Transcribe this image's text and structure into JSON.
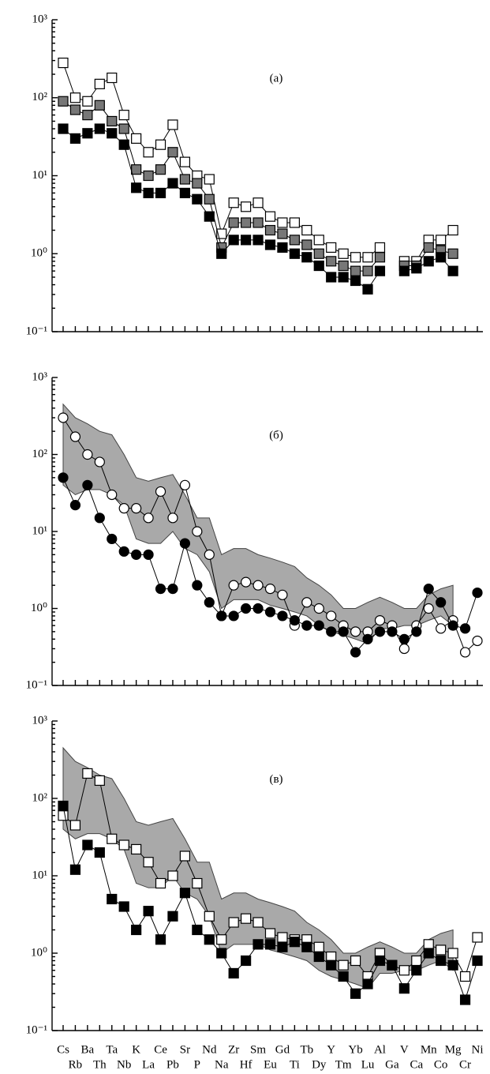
{
  "chart_data": [
    {
      "type": "line",
      "label": "(a)",
      "log": true,
      "ylim": [
        0.1,
        1000
      ],
      "yticks": [
        {
          "value": 0.1,
          "label": "10⁻¹"
        },
        {
          "value": 1,
          "label": "10⁰"
        },
        {
          "value": 10,
          "label": "10¹"
        },
        {
          "value": 100,
          "label": "10²"
        },
        {
          "value": 1000,
          "label": "10³"
        }
      ],
      "series": [
        {
          "marker": "square-open",
          "color": "#000000",
          "values": [
            280,
            100,
            90,
            150,
            180,
            60,
            30,
            20,
            25,
            45,
            15,
            10,
            9,
            1.8,
            4.5,
            4,
            4.5,
            3,
            2.5,
            2.5,
            2,
            1.5,
            1.2,
            1,
            0.9,
            0.9,
            1.2,
            null,
            0.8,
            0.8,
            1.5,
            1.5,
            2,
            null,
            null
          ]
        },
        {
          "marker": "square-half",
          "color": "#000000",
          "values": [
            90,
            70,
            60,
            80,
            50,
            40,
            12,
            10,
            12,
            20,
            9,
            8,
            5,
            1.2,
            2.5,
            2.5,
            2.5,
            2,
            1.8,
            1.5,
            1.3,
            1,
            0.8,
            0.7,
            0.6,
            0.6,
            0.9,
            null,
            0.7,
            0.7,
            1.2,
            1.1,
            1,
            null,
            null
          ]
        },
        {
          "marker": "square-filled",
          "color": "#000000",
          "values": [
            40,
            30,
            35,
            40,
            35,
            25,
            7,
            6,
            6,
            8,
            6,
            5,
            3,
            1,
            1.5,
            1.5,
            1.5,
            1.3,
            1.2,
            1,
            0.9,
            0.7,
            0.5,
            0.5,
            0.45,
            0.35,
            0.6,
            null,
            0.6,
            0.65,
            0.8,
            0.9,
            0.6,
            null,
            null
          ]
        }
      ]
    },
    {
      "type": "line",
      "label": "(б)",
      "log": true,
      "ylim": [
        0.1,
        1000
      ],
      "yticks": [
        {
          "value": 0.1,
          "label": "10⁻¹"
        },
        {
          "value": 1,
          "label": "10⁰"
        },
        {
          "value": 10,
          "label": "10¹"
        },
        {
          "value": 100,
          "label": "10²"
        },
        {
          "value": 1000,
          "label": "10³"
        }
      ],
      "field": {
        "color": "#8c8c8c",
        "upper": [
          450,
          300,
          250,
          200,
          180,
          100,
          50,
          45,
          50,
          55,
          30,
          15,
          15,
          5,
          6,
          6,
          5,
          4.5,
          4,
          3.5,
          2.5,
          2,
          1.5,
          1,
          1,
          1.2,
          1.4,
          1.2,
          1,
          1,
          1.5,
          1.8,
          2,
          null,
          null
        ],
        "lower": [
          40,
          30,
          35,
          35,
          30,
          22,
          8,
          7,
          7,
          10,
          6,
          5,
          3,
          1,
          1.3,
          1.3,
          1.3,
          1.1,
          1,
          0.9,
          0.8,
          0.6,
          0.5,
          0.45,
          0.4,
          0.35,
          0.55,
          0.55,
          0.6,
          0.6,
          0.7,
          0.8,
          0.6,
          null,
          null
        ]
      },
      "series": [
        {
          "marker": "circle-open",
          "color": "#000000",
          "values": [
            300,
            170,
            100,
            80,
            30,
            20,
            20,
            15,
            33,
            15,
            40,
            10,
            5,
            0.8,
            2,
            2.2,
            2,
            1.8,
            1.5,
            0.6,
            1.2,
            1,
            0.8,
            0.6,
            0.5,
            0.5,
            0.7,
            0.6,
            0.3,
            0.6,
            1,
            0.55,
            0.7,
            0.27,
            0.38
          ]
        },
        {
          "marker": "circle-filled",
          "color": "#000000",
          "values": [
            50,
            22,
            40,
            15,
            8,
            5.5,
            5,
            5,
            1.8,
            1.8,
            7,
            2,
            1.2,
            0.8,
            0.8,
            1,
            1,
            0.9,
            0.8,
            0.7,
            0.6,
            0.6,
            0.5,
            0.5,
            0.27,
            0.4,
            0.5,
            0.5,
            0.4,
            0.5,
            1.8,
            1.2,
            0.6,
            0.55,
            1.6
          ]
        }
      ]
    },
    {
      "type": "line",
      "label": "(в)",
      "log": true,
      "ylim": [
        0.1,
        1000
      ],
      "yticks": [
        {
          "value": 0.1,
          "label": "10⁻¹"
        },
        {
          "value": 1,
          "label": "10⁰"
        },
        {
          "value": 10,
          "label": "10¹"
        },
        {
          "value": 100,
          "label": "10²"
        },
        {
          "value": 1000,
          "label": "10³"
        }
      ],
      "categories": [
        "Cs",
        "Rb",
        "Ba",
        "Th",
        "Ta",
        "Nb",
        "K",
        "La",
        "Ce",
        "Pb",
        "Sr",
        "P",
        "Nd",
        "Na",
        "Zr",
        "Hf",
        "Sm",
        "Eu",
        "Gd",
        "Ti",
        "Tb",
        "Dy",
        "Y",
        "Tm",
        "Yb",
        "Lu",
        "Al",
        "Ga",
        "V",
        "Ca",
        "Mn",
        "Co",
        "Mg",
        "Cr",
        "Ni"
      ],
      "field": {
        "color": "#8c8c8c",
        "upper": [
          450,
          300,
          250,
          200,
          180,
          100,
          50,
          45,
          50,
          55,
          30,
          15,
          15,
          5,
          6,
          6,
          5,
          4.5,
          4,
          3.5,
          2.5,
          2,
          1.5,
          1,
          1,
          1.2,
          1.4,
          1.2,
          1,
          1,
          1.5,
          1.8,
          2,
          null,
          null
        ],
        "lower": [
          40,
          30,
          35,
          35,
          30,
          22,
          8,
          7,
          7,
          10,
          6,
          5,
          3,
          1,
          1.3,
          1.3,
          1.3,
          1.1,
          1,
          0.9,
          0.8,
          0.6,
          0.5,
          0.45,
          0.4,
          0.35,
          0.55,
          0.55,
          0.6,
          0.6,
          0.7,
          0.8,
          0.6,
          null,
          null
        ]
      },
      "series": [
        {
          "marker": "square-open",
          "color": "#000000",
          "values": [
            60,
            45,
            210,
            170,
            30,
            25,
            22,
            15,
            8,
            10,
            18,
            8,
            3,
            1.5,
            2.5,
            2.8,
            2.5,
            1.8,
            1.6,
            1.5,
            1.5,
            1.2,
            0.9,
            0.7,
            0.8,
            0.5,
            1,
            0.7,
            0.6,
            0.8,
            1.3,
            1.1,
            1,
            0.5,
            1.6
          ]
        },
        {
          "marker": "square-filled",
          "color": "#000000",
          "values": [
            80,
            12,
            25,
            20,
            5,
            4,
            2,
            3.5,
            1.5,
            3,
            6,
            2,
            1.5,
            1,
            0.55,
            0.8,
            1.3,
            1.3,
            1.2,
            1.4,
            1.2,
            0.9,
            0.7,
            0.5,
            0.3,
            0.4,
            0.8,
            0.7,
            0.35,
            0.6,
            1,
            0.8,
            0.7,
            0.25,
            0.8
          ]
        }
      ]
    }
  ]
}
